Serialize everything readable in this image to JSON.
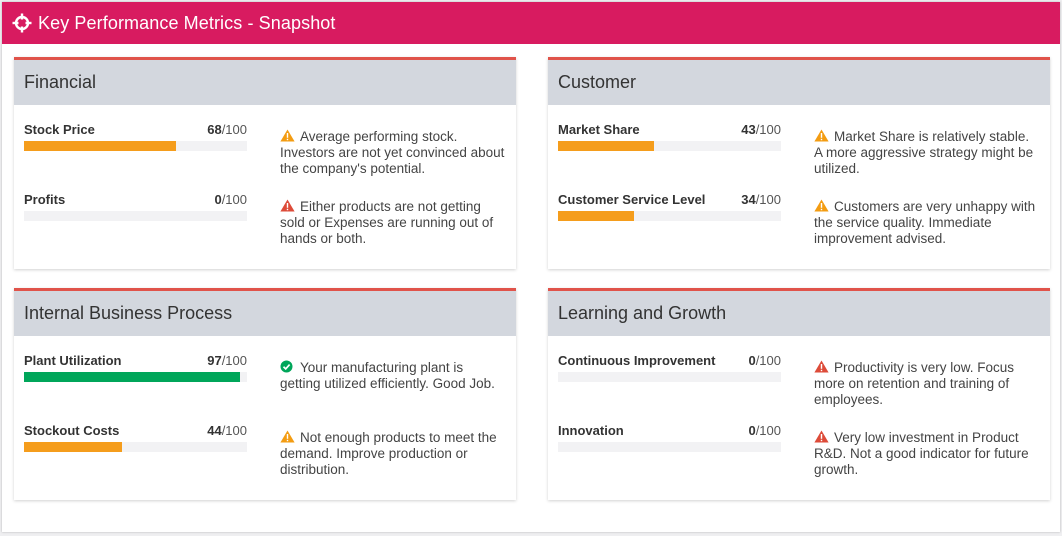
{
  "header": {
    "title": "Key Performance Metrics - Snapshot",
    "icon": "crosshair-icon"
  },
  "colors": {
    "header": "#d81b60",
    "card_accent": "#e0534a",
    "bar_warning": "#f59d1c",
    "bar_success": "#00a65a",
    "icon_warning": "#f39c12",
    "icon_danger": "#dd4b39",
    "icon_success": "#00a65a"
  },
  "cards": [
    {
      "title": "Financial",
      "metrics": [
        {
          "label": "Stock Price",
          "value": "68",
          "denominator": "/100",
          "fraction": 0.68,
          "status": "warning",
          "note": "Average performing stock. Investors are not yet convinced about the company's potential."
        },
        {
          "label": "Profits",
          "value": "0",
          "denominator": "/100",
          "fraction": 0.0,
          "status": "danger",
          "note": "Either products are not getting sold or Expenses are running out of hands or both."
        }
      ]
    },
    {
      "title": "Customer",
      "metrics": [
        {
          "label": "Market Share",
          "value": "43",
          "denominator": "/100",
          "fraction": 0.43,
          "status": "warning",
          "note": "Market Share is relatively stable. A more aggressive strategy might be utilized."
        },
        {
          "label": "Customer Service Level",
          "value": "34",
          "denominator": "/100",
          "fraction": 0.34,
          "status": "warning",
          "note": "Customers are very unhappy with the service quality. Immediate improvement advised."
        }
      ]
    },
    {
      "title": "Internal Business Process",
      "metrics": [
        {
          "label": "Plant Utilization",
          "value": "97",
          "denominator": "/100",
          "fraction": 0.97,
          "status": "success",
          "note": "Your manufacturing plant is getting utilized efficiently. Good Job."
        },
        {
          "label": "Stockout Costs",
          "value": "44",
          "denominator": "/100",
          "fraction": 0.44,
          "status": "warning",
          "note": "Not enough products to meet the demand. Improve production or distribution."
        }
      ]
    },
    {
      "title": "Learning and Growth",
      "metrics": [
        {
          "label": "Continuous Improvement",
          "value": "0",
          "denominator": "/100",
          "fraction": 0.0,
          "status": "danger",
          "note": "Productivity is very low. Focus more on retention and training of employees."
        },
        {
          "label": "Innovation",
          "value": "0",
          "denominator": "/100",
          "fraction": 0.0,
          "status": "danger",
          "note": "Very low investment in Product R&D. Not a good indicator for future growth."
        }
      ]
    }
  ]
}
